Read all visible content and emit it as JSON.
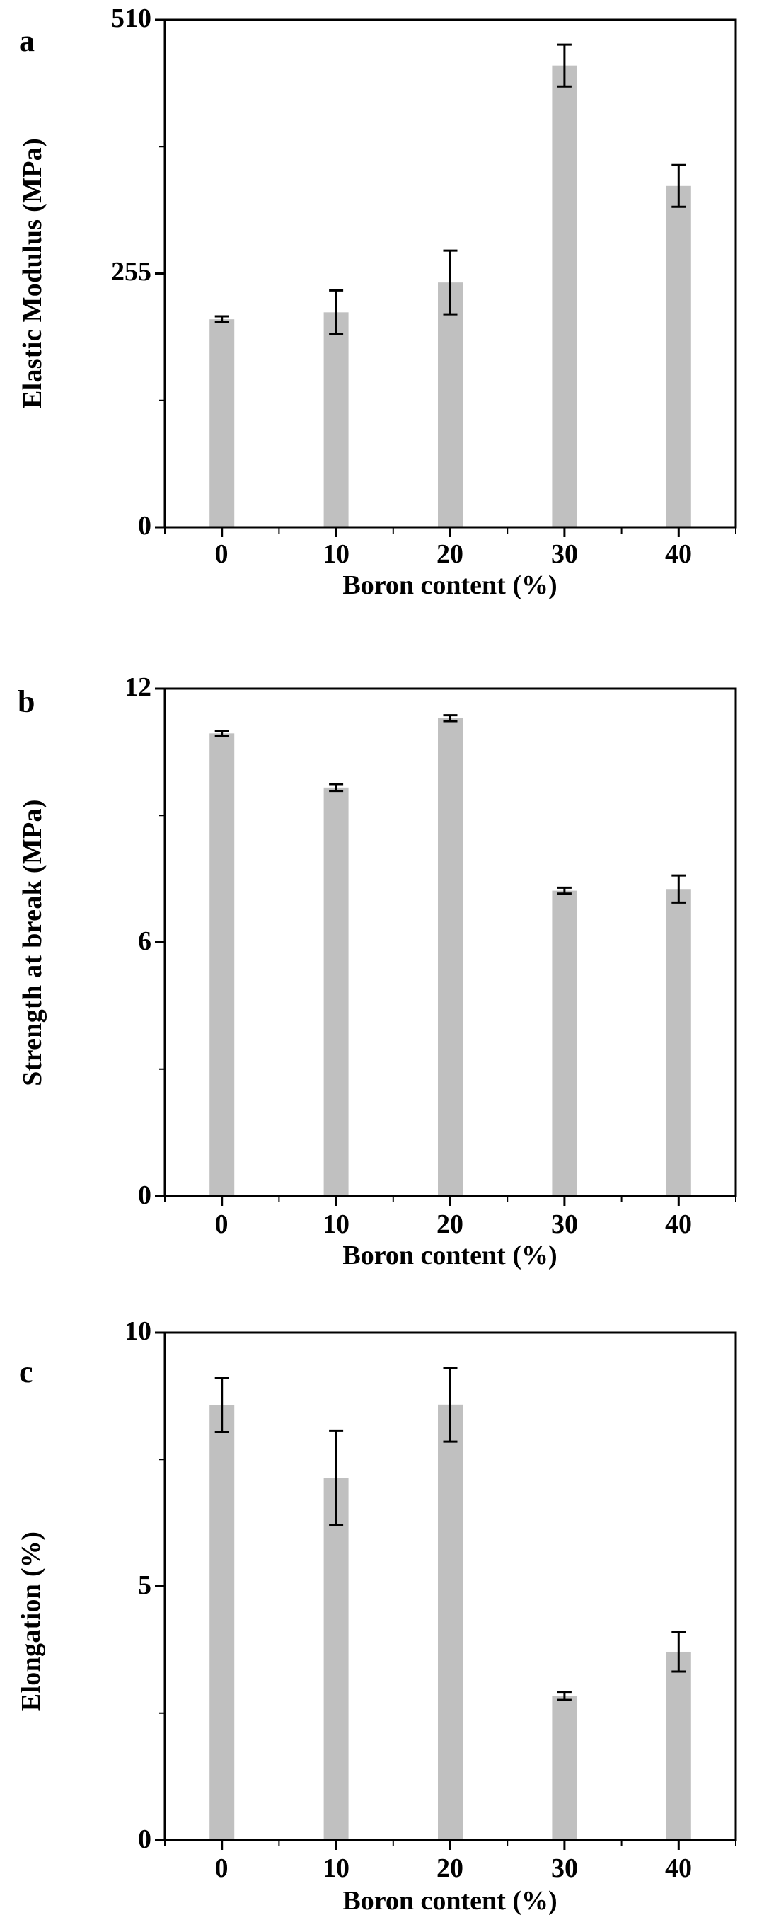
{
  "chart_data": [
    {
      "panel": "a",
      "type": "bar",
      "title": "",
      "xlabel": "Boron content (%)",
      "ylabel": "Elastic Modulus (MPa)",
      "categories": [
        "0",
        "10",
        "20",
        "30",
        "40"
      ],
      "values": [
        209,
        216,
        246,
        464,
        343
      ],
      "errors": [
        3,
        22,
        32,
        21,
        21
      ],
      "yticks": [
        "0",
        "255",
        "510"
      ],
      "ylim": [
        0,
        510
      ],
      "xlim": [
        -5,
        45
      ],
      "grid": false,
      "bar_color": "#c0c0c0"
    },
    {
      "panel": "b",
      "type": "bar",
      "title": "",
      "xlabel": "Boron content (%)",
      "ylabel": "Strength at break (MPa)",
      "categories": [
        "0",
        "10",
        "20",
        "30",
        "40"
      ],
      "values": [
        10.94,
        9.66,
        11.3,
        7.22,
        7.26
      ],
      "errors": [
        0.06,
        0.08,
        0.07,
        0.07,
        0.32
      ],
      "yticks": [
        "0",
        "6",
        "12"
      ],
      "ylim": [
        0,
        12
      ],
      "xlim": [
        -5,
        45
      ],
      "grid": false,
      "bar_color": "#c0c0c0"
    },
    {
      "panel": "c",
      "type": "bar",
      "title": "",
      "xlabel": "Boron content (%)",
      "ylabel": "Elongation (%)",
      "categories": [
        "0",
        "10",
        "20",
        "30",
        "40"
      ],
      "values": [
        8.57,
        7.14,
        8.58,
        2.84,
        3.71
      ],
      "errors": [
        0.53,
        0.93,
        0.73,
        0.08,
        0.39
      ],
      "yticks": [
        "0",
        "5",
        "10"
      ],
      "ylim": [
        0,
        10
      ],
      "xlim": [
        -5,
        45
      ],
      "grid": false,
      "bar_color": "#c0c0c0"
    }
  ],
  "panels": [
    {
      "letter": "a",
      "ylabel": "Elastic Modulus (MPa)",
      "xlabel": "Boron content (%)",
      "yticks": [
        "0",
        "255",
        "510"
      ],
      "xticks": [
        "0",
        "10",
        "20",
        "30",
        "40"
      ]
    },
    {
      "letter": "b",
      "ylabel": "Strength at break (MPa)",
      "xlabel": "Boron content (%)",
      "yticks": [
        "0",
        "6",
        "12"
      ],
      "xticks": [
        "0",
        "10",
        "20",
        "30",
        "40"
      ]
    },
    {
      "letter": "c",
      "ylabel": "Elongation (%)",
      "xlabel": "Boron content (%)",
      "yticks": [
        "0",
        "5",
        "10"
      ],
      "xticks": [
        "0",
        "10",
        "20",
        "30",
        "40"
      ]
    }
  ]
}
